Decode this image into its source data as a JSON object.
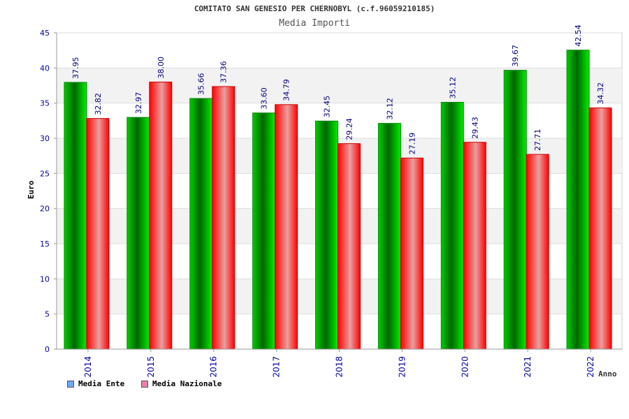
{
  "chart_data": {
    "type": "bar",
    "title": "COMITATO SAN GENESIO PER CHERNOBYL (c.f.96059210185)",
    "subtitle": "Media Importi",
    "xlabel": "Anno",
    "ylabel": "Euro",
    "ylim": [
      0,
      45
    ],
    "yticks": [
      "0",
      "5",
      "10",
      "15",
      "20",
      "25",
      "30",
      "35",
      "40",
      "45"
    ],
    "categories": [
      "2014",
      "2015",
      "2016",
      "2017",
      "2018",
      "2019",
      "2020",
      "2021",
      "2022"
    ],
    "series": [
      {
        "name": "Media Ente",
        "values": [
          37.95,
          32.97,
          35.66,
          33.6,
          32.45,
          32.12,
          35.12,
          39.67,
          42.54
        ],
        "labels": [
          "37.95",
          "32.97",
          "35.66",
          "33.60",
          "32.45",
          "32.12",
          "35.12",
          "39.67",
          "42.54"
        ],
        "color": "#00b000",
        "legend_color": "#6fa8ff"
      },
      {
        "name": "Media Nazionale",
        "values": [
          32.82,
          38.0,
          37.36,
          34.79,
          29.24,
          27.19,
          29.43,
          27.71,
          34.32
        ],
        "labels": [
          "32.82",
          "38.00",
          "37.36",
          "34.79",
          "29.24",
          "27.19",
          "29.43",
          "27.71",
          "34.32"
        ],
        "color": "#ff0000",
        "legend_color": "#e87fb0"
      }
    ],
    "grid": true,
    "legend_position": "bottom-left"
  }
}
